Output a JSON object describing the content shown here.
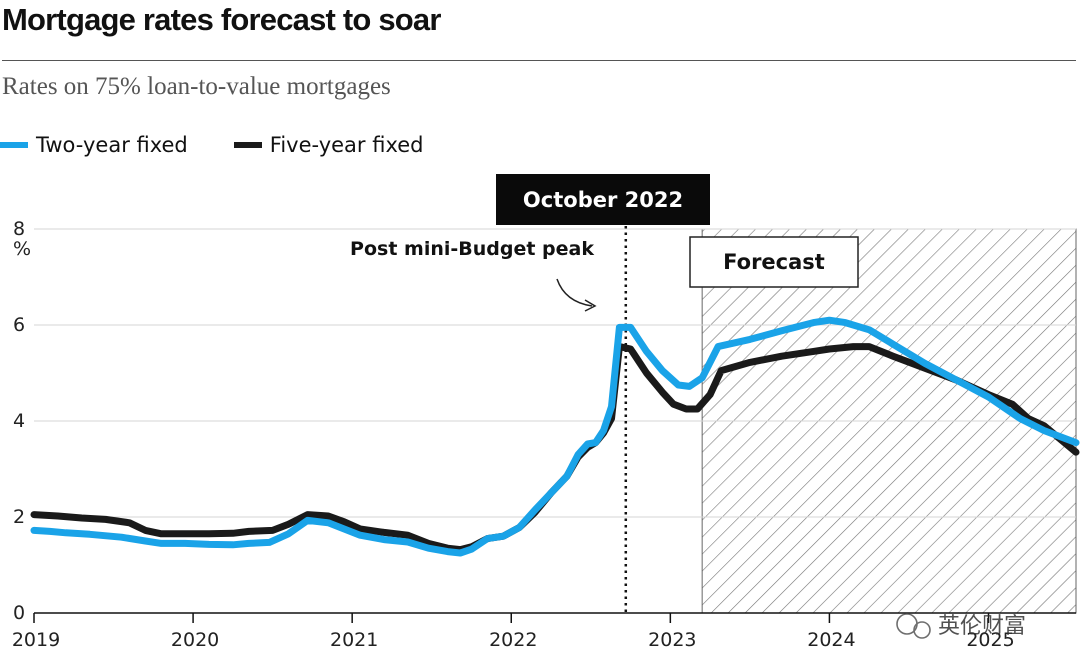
{
  "header": {
    "title": "Mortgage rates forecast to soar",
    "subtitle": "Rates on 75% loan-to-value mortgages"
  },
  "legend": [
    {
      "label": "Two-year fixed",
      "color": "#1aa3e8"
    },
    {
      "label": "Five-year fixed",
      "color": "#1a1a1a"
    }
  ],
  "annotations": {
    "event_label": "October 2022",
    "peak_label": "Post mini-Budget peak",
    "forecast_label": "Forecast"
  },
  "watermark": "英伦财富",
  "chart_data": {
    "type": "line",
    "title": "Mortgage rates forecast to soar",
    "subtitle": "Rates on 75% loan-to-value mortgages",
    "ylabel": "%",
    "ylim": [
      0,
      8
    ],
    "y_ticks": [
      0,
      2,
      4,
      6,
      8
    ],
    "xlim": [
      2019.0,
      2025.55
    ],
    "x_ticks": [
      "2019",
      "2020",
      "2021",
      "2022",
      "2023",
      "2024",
      "2025"
    ],
    "event_x": 2022.72,
    "forecast_start": 2023.2,
    "grid": true,
    "legend_position": "top-left",
    "series": [
      {
        "name": "Two-year fixed",
        "color": "#1aa3e8",
        "points": [
          [
            2019.0,
            1.72
          ],
          [
            2019.1,
            1.7
          ],
          [
            2019.2,
            1.67
          ],
          [
            2019.35,
            1.64
          ],
          [
            2019.55,
            1.58
          ],
          [
            2019.7,
            1.5
          ],
          [
            2019.8,
            1.45
          ],
          [
            2019.95,
            1.45
          ],
          [
            2020.1,
            1.43
          ],
          [
            2020.25,
            1.42
          ],
          [
            2020.35,
            1.45
          ],
          [
            2020.48,
            1.47
          ],
          [
            2020.6,
            1.65
          ],
          [
            2020.72,
            1.93
          ],
          [
            2020.85,
            1.88
          ],
          [
            2020.95,
            1.75
          ],
          [
            2021.05,
            1.62
          ],
          [
            2021.2,
            1.53
          ],
          [
            2021.35,
            1.48
          ],
          [
            2021.48,
            1.35
          ],
          [
            2021.6,
            1.28
          ],
          [
            2021.68,
            1.25
          ],
          [
            2021.75,
            1.33
          ],
          [
            2021.85,
            1.55
          ],
          [
            2021.95,
            1.6
          ],
          [
            2022.05,
            1.78
          ],
          [
            2022.15,
            2.15
          ],
          [
            2022.25,
            2.5
          ],
          [
            2022.35,
            2.85
          ],
          [
            2022.42,
            3.3
          ],
          [
            2022.48,
            3.52
          ],
          [
            2022.53,
            3.55
          ],
          [
            2022.58,
            3.8
          ],
          [
            2022.63,
            4.3
          ],
          [
            2022.68,
            5.95
          ],
          [
            2022.75,
            5.95
          ],
          [
            2022.85,
            5.45
          ],
          [
            2022.95,
            5.05
          ],
          [
            2023.05,
            4.75
          ],
          [
            2023.12,
            4.72
          ],
          [
            2023.2,
            4.9
          ],
          [
            2023.3,
            5.55
          ],
          [
            2023.5,
            5.7
          ],
          [
            2023.7,
            5.88
          ],
          [
            2023.9,
            6.05
          ],
          [
            2024.0,
            6.1
          ],
          [
            2024.1,
            6.05
          ],
          [
            2024.25,
            5.9
          ],
          [
            2024.4,
            5.6
          ],
          [
            2024.6,
            5.2
          ],
          [
            2024.8,
            4.85
          ],
          [
            2025.0,
            4.5
          ],
          [
            2025.2,
            4.05
          ],
          [
            2025.35,
            3.8
          ],
          [
            2025.55,
            3.55
          ]
        ]
      },
      {
        "name": "Five-year fixed",
        "color": "#1a1a1a",
        "points": [
          [
            2019.0,
            2.05
          ],
          [
            2019.15,
            2.02
          ],
          [
            2019.3,
            1.98
          ],
          [
            2019.45,
            1.95
          ],
          [
            2019.6,
            1.88
          ],
          [
            2019.7,
            1.72
          ],
          [
            2019.8,
            1.65
          ],
          [
            2019.95,
            1.65
          ],
          [
            2020.1,
            1.65
          ],
          [
            2020.25,
            1.66
          ],
          [
            2020.35,
            1.7
          ],
          [
            2020.5,
            1.72
          ],
          [
            2020.6,
            1.85
          ],
          [
            2020.72,
            2.05
          ],
          [
            2020.85,
            2.02
          ],
          [
            2020.95,
            1.9
          ],
          [
            2021.05,
            1.75
          ],
          [
            2021.2,
            1.68
          ],
          [
            2021.35,
            1.62
          ],
          [
            2021.48,
            1.45
          ],
          [
            2021.6,
            1.35
          ],
          [
            2021.68,
            1.32
          ],
          [
            2021.75,
            1.38
          ],
          [
            2021.85,
            1.55
          ],
          [
            2021.95,
            1.6
          ],
          [
            2022.05,
            1.78
          ],
          [
            2022.15,
            2.1
          ],
          [
            2022.25,
            2.5
          ],
          [
            2022.35,
            2.85
          ],
          [
            2022.42,
            3.25
          ],
          [
            2022.48,
            3.45
          ],
          [
            2022.53,
            3.55
          ],
          [
            2022.58,
            3.75
          ],
          [
            2022.63,
            4.05
          ],
          [
            2022.68,
            5.55
          ],
          [
            2022.75,
            5.5
          ],
          [
            2022.85,
            5.0
          ],
          [
            2022.95,
            4.6
          ],
          [
            2023.02,
            4.35
          ],
          [
            2023.1,
            4.25
          ],
          [
            2023.17,
            4.25
          ],
          [
            2023.25,
            4.55
          ],
          [
            2023.32,
            5.05
          ],
          [
            2023.5,
            5.22
          ],
          [
            2023.7,
            5.35
          ],
          [
            2023.9,
            5.45
          ],
          [
            2024.0,
            5.5
          ],
          [
            2024.15,
            5.55
          ],
          [
            2024.25,
            5.55
          ],
          [
            2024.4,
            5.35
          ],
          [
            2024.6,
            5.1
          ],
          [
            2024.8,
            4.85
          ],
          [
            2025.0,
            4.55
          ],
          [
            2025.15,
            4.35
          ],
          [
            2025.25,
            4.05
          ],
          [
            2025.35,
            3.9
          ],
          [
            2025.55,
            3.35
          ]
        ]
      }
    ]
  }
}
